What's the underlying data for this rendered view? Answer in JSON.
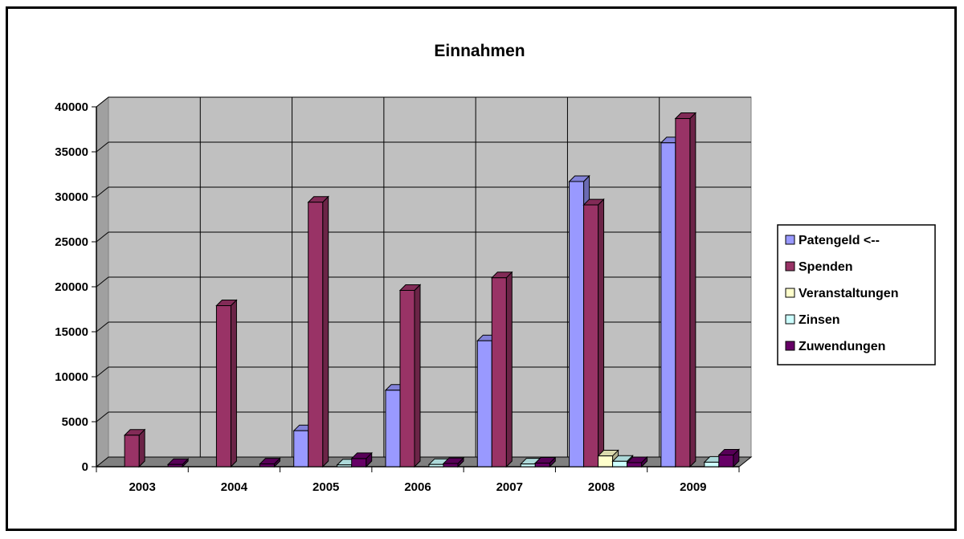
{
  "chart_data": {
    "type": "bar",
    "title": "Einnahmen",
    "categories": [
      "2003",
      "2004",
      "2005",
      "2006",
      "2007",
      "2008",
      "2009"
    ],
    "ylim": [
      0,
      40000
    ],
    "yticks": [
      "0",
      "5000",
      "10000",
      "15000",
      "20000",
      "25000",
      "30000",
      "35000",
      "40000"
    ],
    "grid": true,
    "legend_position": "right",
    "series": [
      {
        "name": "Patengeld <--",
        "color": "#9999ff",
        "values": [
          0,
          0,
          4000,
          8500,
          14000,
          31700,
          36000
        ]
      },
      {
        "name": "Spenden",
        "color": "#993366",
        "values": [
          3500,
          17900,
          29400,
          19600,
          21000,
          29100,
          38700
        ]
      },
      {
        "name": "Veranstaltungen",
        "color": "#ffffcc",
        "values": [
          0,
          0,
          0,
          0,
          0,
          1200,
          0
        ]
      },
      {
        "name": "Zinsen",
        "color": "#ccffff",
        "values": [
          0,
          0,
          200,
          250,
          300,
          600,
          500
        ]
      },
      {
        "name": "Zuwendungen",
        "color": "#660066",
        "values": [
          250,
          300,
          900,
          350,
          400,
          450,
          1300
        ]
      }
    ]
  }
}
